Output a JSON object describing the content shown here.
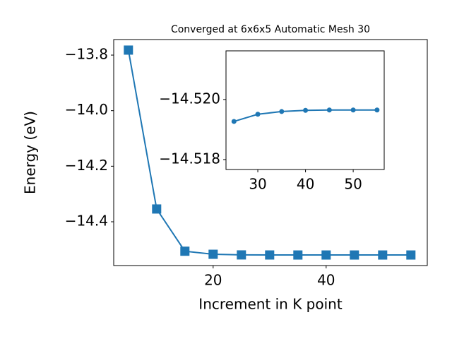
{
  "chart_data": [
    {
      "type": "line",
      "title": "Converged at 6x6x5 Automatic Mesh 30",
      "x_label": "Increment in K point",
      "y_label": "Energy (eV)",
      "x": [
        5,
        10,
        15,
        20,
        25,
        30,
        35,
        40,
        45,
        50,
        55
      ],
      "series": [
        {
          "color": "#1f77b4",
          "marker": "square",
          "values": [
            -13.782,
            -14.354,
            -14.506,
            -14.517,
            -14.5193,
            -14.5195,
            -14.5196,
            -14.5196,
            -14.5196,
            -14.5196,
            -14.5196
          ]
        }
      ],
      "xlim": [
        2.4,
        57.9
      ],
      "ylim": [
        -14.5576,
        -13.744
      ],
      "xticks": [
        20,
        40
      ],
      "yticks": [
        {
          "value": -13.8,
          "label": "−13.8"
        },
        {
          "value": -14.0,
          "label": "−14.0"
        },
        {
          "value": -14.2,
          "label": "−14.2"
        },
        {
          "value": -14.4,
          "label": "−14.4"
        }
      ]
    },
    {
      "type": "line",
      "x": [
        25,
        30,
        35,
        40,
        45,
        50,
        55
      ],
      "series": [
        {
          "color": "#1f77b4",
          "marker": "circle",
          "values": [
            -14.51927,
            -14.51951,
            -14.5196,
            -14.51964,
            -14.51965,
            -14.51965,
            -14.51965
          ]
        }
      ],
      "xlim": [
        23.33,
        56.5
      ],
      "ylim": [
        -14.51767,
        -14.52162
      ],
      "xticks": [
        30,
        40,
        50
      ],
      "yticks": [
        {
          "value": -14.52,
          "label": "−14.520"
        },
        {
          "value": -14.518,
          "label": "−14.518"
        }
      ]
    }
  ]
}
